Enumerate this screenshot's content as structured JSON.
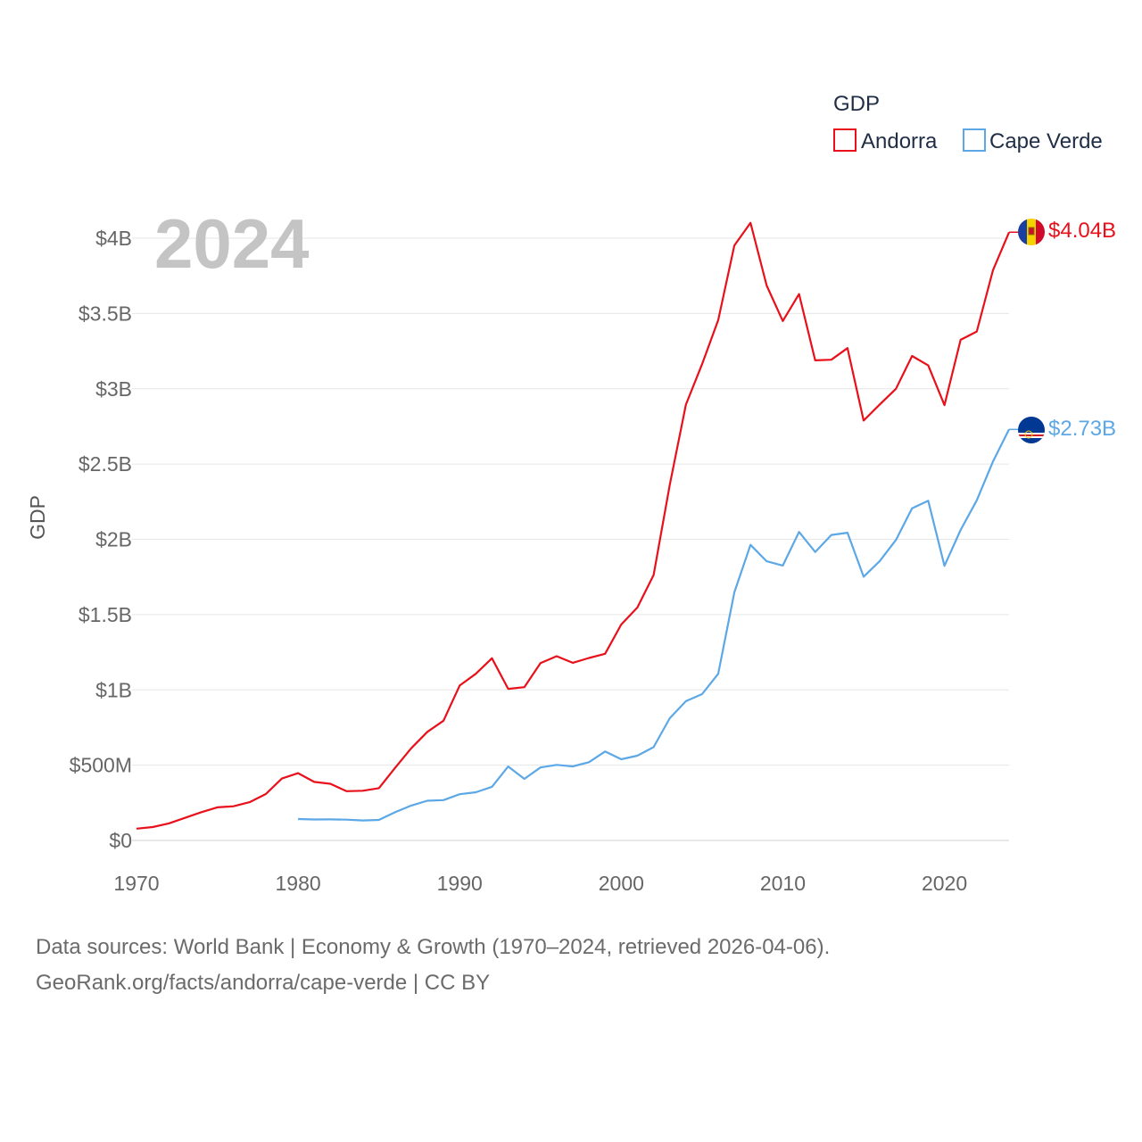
{
  "chart_data": {
    "type": "line",
    "year_label": "2024",
    "ylabel": "GDP",
    "xlabel": "",
    "xlim": [
      1970,
      2024
    ],
    "ylim": [
      0,
      4000000000
    ],
    "x_ticks": [
      1970,
      1980,
      1990,
      2000,
      2010,
      2020
    ],
    "y_ticks": [
      {
        "value": 0,
        "label": "$0"
      },
      {
        "value": 500000000,
        "label": "$500M"
      },
      {
        "value": 1000000000,
        "label": "$1B"
      },
      {
        "value": 1500000000,
        "label": "$1.5B"
      },
      {
        "value": 2000000000,
        "label": "$2B"
      },
      {
        "value": 2500000000,
        "label": "$2.5B"
      },
      {
        "value": 3000000000,
        "label": "$3B"
      },
      {
        "value": 3500000000,
        "label": "$3.5B"
      },
      {
        "value": 4000000000,
        "label": "$4B"
      }
    ],
    "grid": true,
    "legend": {
      "title": "GDP",
      "position": "top-right"
    },
    "series": [
      {
        "name": "Andorra",
        "color": "#e8101a",
        "end_label": "$4.04B",
        "flag": "andorra-flag",
        "start_year": 1970,
        "values": [
          0.078,
          0.089,
          0.113,
          0.15,
          0.187,
          0.22,
          0.227,
          0.254,
          0.308,
          0.411,
          0.447,
          0.389,
          0.376,
          0.327,
          0.33,
          0.347,
          0.482,
          0.612,
          0.721,
          0.795,
          1.029,
          1.107,
          1.21,
          1.007,
          1.018,
          1.178,
          1.224,
          1.18,
          1.212,
          1.24,
          1.434,
          1.547,
          1.763,
          2.362,
          2.895,
          3.163,
          3.456,
          3.952,
          4.102,
          3.686,
          3.45,
          3.629,
          3.189,
          3.193,
          3.27,
          2.789,
          2.896,
          3.0,
          3.218,
          3.155,
          2.891,
          3.325,
          3.38,
          3.786,
          4.04
        ]
      },
      {
        "name": "Cape Verde",
        "color": "#5ca8e6",
        "end_label": "$2.73B",
        "flag": "cape-verde-flag",
        "start_year": 1980,
        "values": [
          0.142,
          0.139,
          0.14,
          0.138,
          0.133,
          0.136,
          0.187,
          0.232,
          0.264,
          0.268,
          0.307,
          0.32,
          0.356,
          0.491,
          0.409,
          0.485,
          0.502,
          0.492,
          0.52,
          0.591,
          0.539,
          0.563,
          0.62,
          0.812,
          0.925,
          0.972,
          1.107,
          1.648,
          1.963,
          1.854,
          1.826,
          2.049,
          1.916,
          2.029,
          2.044,
          1.752,
          1.856,
          1.996,
          2.206,
          2.256,
          1.824,
          2.062,
          2.259,
          2.516,
          2.73
        ]
      }
    ]
  },
  "footer": {
    "line1": "Data sources: World Bank | Economy & Growth (1970–2024, retrieved 2026-04-06).",
    "line2": "GeoRank.org/facts/andorra/cape-verde | CC BY"
  }
}
